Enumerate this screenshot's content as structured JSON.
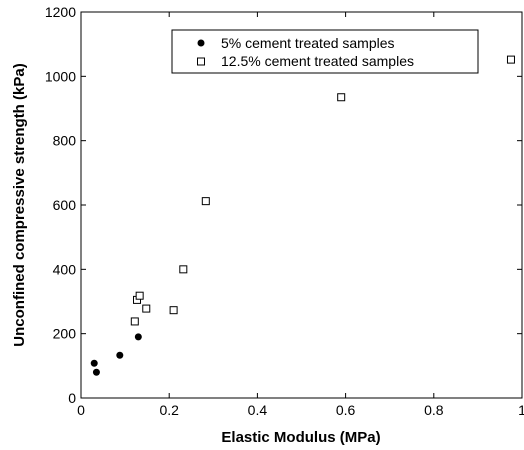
{
  "chart_data": {
    "type": "scatter",
    "xlabel": "Elastic Modulus (MPa)",
    "ylabel": "Unconfined compressive strength (kPa)",
    "xlim": [
      0,
      1
    ],
    "ylim": [
      0,
      1200
    ],
    "xticks": [
      0,
      0.2,
      0.4,
      0.6,
      0.8,
      1
    ],
    "yticks": [
      0,
      200,
      400,
      600,
      800,
      1000,
      1200
    ],
    "xtick_labels": [
      "0",
      "0.2",
      "0.4",
      "0.6",
      "0.8",
      "1"
    ],
    "ytick_labels": [
      "0",
      "200",
      "400",
      "600",
      "800",
      "1000",
      "1200"
    ],
    "grid": false,
    "legend_position": "top-right",
    "series": [
      {
        "name": "5% cement treated samples",
        "marker": "filled-circle",
        "color": "#000000",
        "x": [
          0.03,
          0.035,
          0.088,
          0.13
        ],
        "y": [
          108,
          80,
          133,
          190
        ]
      },
      {
        "name": "12.5% cement treated samples",
        "marker": "open-square",
        "color": "#000000",
        "x": [
          0.122,
          0.127,
          0.133,
          0.148,
          0.21,
          0.232,
          0.283,
          0.59,
          0.975
        ],
        "y": [
          238,
          305,
          318,
          278,
          273,
          400,
          612,
          935,
          1052
        ]
      }
    ]
  }
}
